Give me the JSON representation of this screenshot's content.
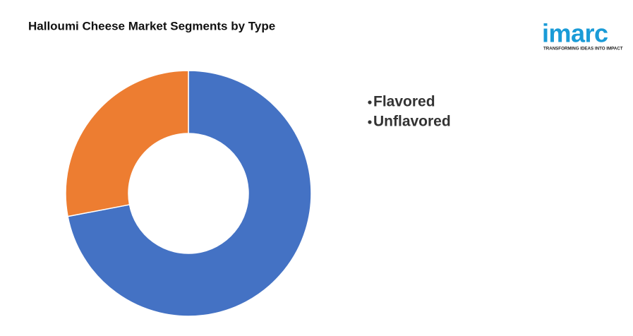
{
  "chart_data": {
    "type": "donut",
    "title": "Halloumi Cheese Market Segments by Type",
    "categories": [
      "Flavored",
      "Unflavored"
    ],
    "values": [
      72,
      28
    ],
    "colors": [
      "#4472c4",
      "#ed7d31"
    ]
  },
  "logo": {
    "name": "imarc",
    "tagline": "TRANSFORMING IDEAS INTO IMPACT"
  }
}
